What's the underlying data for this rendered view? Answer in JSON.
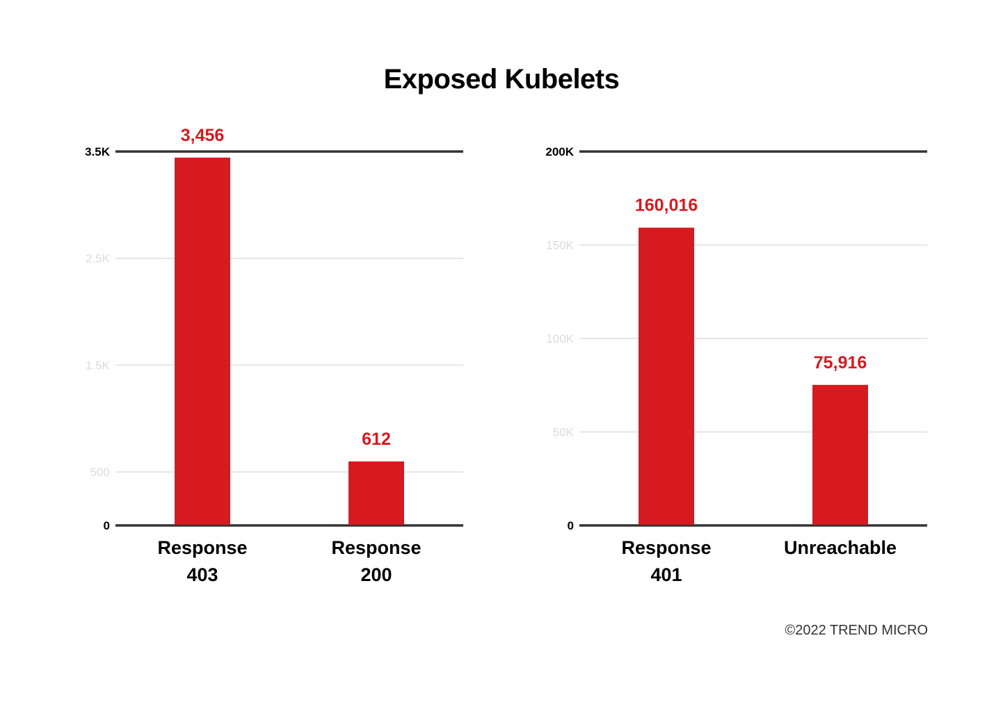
{
  "title": "Exposed Kubelets",
  "credit": "©2022 TREND MICRO",
  "colors": {
    "bar": "#d71920",
    "value_label": "#d71920",
    "axis_line": "#333333",
    "grid": "#e6e6e6",
    "tick_faint": "#dcdcdc",
    "tick_strong": "#000000"
  },
  "chart_data": [
    {
      "type": "bar",
      "categories": [
        [
          "Response",
          "403"
        ],
        [
          "Response",
          "200"
        ]
      ],
      "values": [
        3456,
        612
      ],
      "value_labels": [
        "3,456",
        "612"
      ],
      "ylim": [
        0,
        3500
      ],
      "yticks": [
        {
          "value": 0,
          "label": "0",
          "strong": true
        },
        {
          "value": 500,
          "label": "500",
          "strong": false
        },
        {
          "value": 1500,
          "label": "1.5K",
          "strong": false
        },
        {
          "value": 2500,
          "label": "2.5K",
          "strong": false
        },
        {
          "value": 3500,
          "label": "3.5K",
          "strong": true
        }
      ],
      "grid": true
    },
    {
      "type": "bar",
      "categories": [
        [
          "Response",
          "401"
        ],
        [
          "Unreachable"
        ]
      ],
      "values": [
        160016,
        75916
      ],
      "value_labels": [
        "160,016",
        "75,916"
      ],
      "ylim": [
        0,
        200000
      ],
      "yticks": [
        {
          "value": 0,
          "label": "0",
          "strong": true
        },
        {
          "value": 50000,
          "label": "50K",
          "strong": false
        },
        {
          "value": 100000,
          "label": "100K",
          "strong": false
        },
        {
          "value": 150000,
          "label": "150K",
          "strong": false
        },
        {
          "value": 200000,
          "label": "200K",
          "strong": true
        }
      ],
      "grid": true
    }
  ]
}
